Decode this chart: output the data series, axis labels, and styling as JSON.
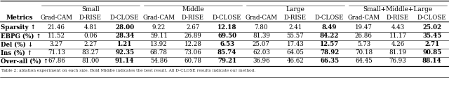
{
  "col_groups": [
    "Small",
    "Middle",
    "Large",
    "Small+Middle+Large"
  ],
  "col_methods": [
    "Grad-CAM",
    "D-RISE",
    "D-CLOSE"
  ],
  "data": [
    [
      21.46,
      4.81,
      28.0,
      9.22,
      2.67,
      12.18,
      7.8,
      2.41,
      8.49,
      19.47,
      4.43,
      25.02
    ],
    [
      11.52,
      0.06,
      28.34,
      59.11,
      26.89,
      69.5,
      81.39,
      55.57,
      84.22,
      26.86,
      11.17,
      35.45
    ],
    [
      3.27,
      2.27,
      1.21,
      13.92,
      12.28,
      6.53,
      25.07,
      17.43,
      12.57,
      5.73,
      4.26,
      2.71
    ],
    [
      71.13,
      83.27,
      92.35,
      68.78,
      73.06,
      85.74,
      62.03,
      64.05,
      78.92,
      70.18,
      81.19,
      90.85
    ],
    [
      67.86,
      81.0,
      91.14,
      54.86,
      60.78,
      79.21,
      36.96,
      46.62,
      66.35,
      64.45,
      76.93,
      88.14
    ]
  ],
  "metric_labels": [
    "Sparsity",
    "EBPG (%)",
    "Del (%)",
    "Ins (%)",
    "Over-all (%)"
  ],
  "metric_arrows": [
    "↑",
    "↑",
    "↓",
    "↑",
    "↑"
  ],
  "bold_col_indices": [
    2,
    5,
    8,
    11
  ],
  "caption": "Table 2: ablation experiment on each size. Bold Middle indicates the best result. All D-CLOSE results indicate our method.",
  "bg_color": "#f5f5f0",
  "white": "#ffffff",
  "fs_data": 6.2,
  "fs_header": 6.5,
  "fs_caption": 4.2
}
